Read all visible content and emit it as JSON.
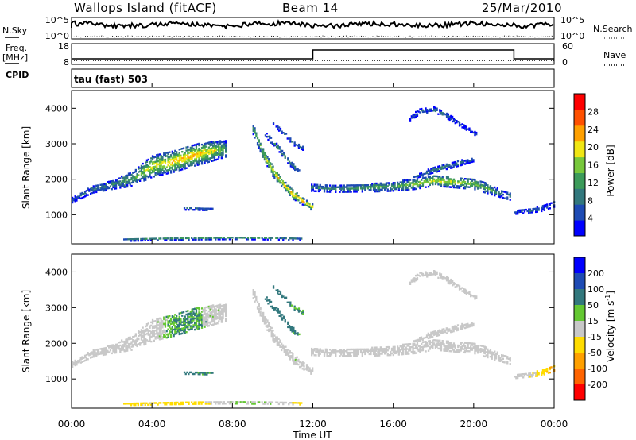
{
  "header": {
    "station": "Wallops Island (fitACF)",
    "beam": "Beam 14",
    "date": "25/Mar/2010"
  },
  "strips": {
    "nsky_label": "N.Sky",
    "nsky_ticks": [
      "10^5",
      "10^0"
    ],
    "nsearch_label": "N.Search",
    "nsearch_ticks": [
      "10^5",
      "10^0"
    ],
    "freq_label_1": "Freq.",
    "freq_label_2": "[MHz]",
    "freq_ticks": [
      "18",
      "8"
    ],
    "nave_label": "Nave",
    "nave_ticks": [
      "60",
      "0"
    ],
    "cpid_label": "CPID",
    "cpid_value": "tau (fast) 503"
  },
  "colors": {
    "power_scale": [
      "#0000ff",
      "#1e4bb4",
      "#32787d",
      "#3c9b5a",
      "#78c83c",
      "#f0e614",
      "#ffa000",
      "#ff5000",
      "#ff0000"
    ],
    "velocity_scale": [
      "#0000ff",
      "#1e4bb4",
      "#32787d",
      "#64c832",
      "#c8c8c8",
      "#ffdc00",
      "#ffa000",
      "#ff6400",
      "#ff0000"
    ],
    "ground_scatter": "#c8c8c8"
  },
  "chart_data": [
    {
      "type": "heatmap",
      "panel": "power",
      "ylabel": "Slant Range [km]",
      "xlabel": "Time UT",
      "x_ticks": [
        "00:00",
        "04:00",
        "08:00",
        "12:00",
        "16:00",
        "20:00",
        "00:00"
      ],
      "xlim_hours": [
        0,
        24
      ],
      "y_ticks": [
        1000,
        2000,
        3000,
        4000
      ],
      "ylim": [
        180,
        4500
      ],
      "colorbar": {
        "label": "Power [dB]",
        "ticks": [
          4,
          8,
          12,
          16,
          20,
          24,
          28
        ],
        "range": [
          0,
          32
        ]
      },
      "regions": [
        {
          "name": "early-band",
          "t": [
            0.0,
            1.0,
            2.0,
            3.0,
            4.0,
            5.0,
            6.0,
            7.0,
            7.7
          ],
          "r": [
            1400,
            1700,
            1830,
            2000,
            2350,
            2480,
            2650,
            2780,
            2850
          ],
          "w": [
            150,
            200,
            250,
            400,
            600,
            600,
            600,
            550,
            450
          ],
          "p": [
            6,
            10,
            12,
            15,
            22,
            24,
            25,
            22,
            14
          ]
        },
        {
          "name": "evening-steep-arc",
          "t": [
            9.0,
            9.5,
            10.0,
            10.5,
            11.0,
            11.5,
            11.95
          ],
          "r": [
            3400,
            2700,
            2200,
            1850,
            1550,
            1350,
            1200
          ],
          "w": [
            300,
            300,
            300,
            250,
            250,
            200,
            200
          ],
          "p": [
            14,
            20,
            22,
            24,
            26,
            26,
            22
          ]
        },
        {
          "name": "evening-upper-arc-1",
          "t": [
            9.6,
            10.2,
            10.8,
            11.3
          ],
          "r": [
            3250,
            2900,
            2450,
            2200
          ],
          "w": [
            150,
            150,
            150,
            130
          ],
          "p": [
            8,
            14,
            12,
            10
          ]
        },
        {
          "name": "evening-upper-arc-2",
          "t": [
            10.0,
            10.6,
            11.0,
            11.5
          ],
          "r": [
            3550,
            3250,
            3000,
            2850
          ],
          "w": [
            120,
            120,
            120,
            100
          ],
          "p": [
            6,
            8,
            10,
            8
          ]
        },
        {
          "name": "night-band",
          "t": [
            11.9,
            13.0,
            14.0,
            15.0,
            16.0,
            17.0,
            18.0,
            19.0,
            20.0,
            21.0,
            21.9
          ],
          "r": [
            1750,
            1720,
            1730,
            1760,
            1780,
            1850,
            1950,
            1900,
            1850,
            1650,
            1480
          ],
          "w": [
            200,
            200,
            200,
            250,
            250,
            300,
            300,
            300,
            300,
            250,
            200
          ],
          "p": [
            10,
            12,
            14,
            16,
            14,
            20,
            22,
            20,
            18,
            14,
            10
          ]
        },
        {
          "name": "far-range-arc",
          "t": [
            16.8,
            17.3,
            18.0,
            18.7,
            19.4,
            20.1
          ],
          "r": [
            3700,
            3900,
            3950,
            3750,
            3500,
            3250
          ],
          "w": [
            120,
            150,
            150,
            150,
            120,
            100
          ],
          "p": [
            6,
            8,
            10,
            8,
            6,
            5
          ]
        },
        {
          "name": "mid-range-arc",
          "t": [
            17.0,
            18.0,
            19.0,
            20.0
          ],
          "r": [
            2050,
            2250,
            2400,
            2550
          ],
          "w": [
            100,
            150,
            150,
            120
          ],
          "p": [
            8,
            12,
            10,
            8
          ]
        },
        {
          "name": "dawn-band",
          "t": [
            22.0,
            22.7,
            23.3,
            24.0
          ],
          "r": [
            1050,
            1100,
            1150,
            1300
          ],
          "w": [
            100,
            120,
            150,
            180
          ],
          "p": [
            6,
            8,
            8,
            6
          ]
        },
        {
          "name": "blob-1100km",
          "t": [
            5.5,
            6.0,
            6.5,
            7.0
          ],
          "r": [
            1150,
            1150,
            1140,
            1130
          ],
          "w": [
            60,
            60,
            60,
            50
          ],
          "p": [
            14,
            14,
            13,
            12
          ]
        },
        {
          "name": "near-range",
          "t": [
            2.5,
            4.0,
            6.0,
            8.0,
            10.0,
            11.5
          ],
          "r": [
            280,
            300,
            320,
            330,
            320,
            300
          ],
          "w": [
            80,
            80,
            80,
            80,
            80,
            80
          ],
          "p": [
            8,
            12,
            14,
            14,
            12,
            10
          ]
        }
      ]
    },
    {
      "type": "heatmap",
      "panel": "velocity",
      "ylabel": "Slant Range [km]",
      "xlabel": "Time UT",
      "x_ticks": [
        "00:00",
        "04:00",
        "08:00",
        "12:00",
        "16:00",
        "20:00",
        "00:00"
      ],
      "y_ticks": [
        1000,
        2000,
        3000,
        4000
      ],
      "ylim": [
        180,
        4500
      ],
      "colorbar": {
        "label": "Velocity [m s",
        "label_exponent": "-1",
        "label_end": "]",
        "ticks": [
          "200",
          "100",
          "50",
          "15",
          "-15",
          "-50",
          "-100",
          "-200"
        ]
      },
      "regions": [
        {
          "name": "early-band",
          "t": [
            0.0,
            1.0,
            2.0,
            3.0,
            4.0,
            5.0,
            6.0,
            7.0,
            7.7
          ],
          "r": [
            1400,
            1700,
            1830,
            2000,
            2350,
            2480,
            2650,
            2780,
            2850
          ],
          "w": [
            150,
            200,
            250,
            400,
            600,
            600,
            600,
            550,
            450
          ],
          "v": [
            0,
            0,
            0,
            0,
            5,
            30,
            35,
            20,
            10
          ],
          "gs": [
            1,
            1,
            1,
            1,
            1,
            0,
            0,
            1,
            1
          ]
        },
        {
          "name": "evening-steep-arc",
          "t": [
            9.0,
            9.5,
            10.0,
            10.5,
            11.0,
            11.5,
            11.95
          ],
          "r": [
            3400,
            2700,
            2200,
            1850,
            1550,
            1350,
            1200
          ],
          "w": [
            300,
            300,
            300,
            250,
            250,
            200,
            200
          ],
          "v": [
            0,
            0,
            5,
            10,
            10,
            5,
            0
          ],
          "gs": [
            1,
            1,
            1,
            1,
            1,
            1,
            1
          ]
        },
        {
          "name": "evening-upper-arc-1",
          "t": [
            9.6,
            10.2,
            10.8,
            11.3
          ],
          "r": [
            3250,
            2900,
            2450,
            2200
          ],
          "w": [
            150,
            150,
            150,
            130
          ],
          "v": [
            40,
            45,
            40,
            35
          ],
          "gs": [
            0,
            0,
            0,
            0
          ]
        },
        {
          "name": "evening-upper-arc-2",
          "t": [
            10.0,
            10.6,
            11.0,
            11.5
          ],
          "r": [
            3550,
            3250,
            3000,
            2850
          ],
          "w": [
            120,
            120,
            120,
            100
          ],
          "v": [
            40,
            40,
            35,
            30
          ],
          "gs": [
            0,
            0,
            0,
            0
          ]
        },
        {
          "name": "night-band",
          "t": [
            11.9,
            13.0,
            14.0,
            15.0,
            16.0,
            17.0,
            18.0,
            19.0,
            20.0,
            21.0,
            21.9
          ],
          "r": [
            1750,
            1720,
            1730,
            1760,
            1780,
            1850,
            1950,
            1900,
            1850,
            1650,
            1480
          ],
          "w": [
            200,
            200,
            200,
            250,
            250,
            300,
            300,
            300,
            300,
            250,
            200
          ],
          "v": [
            0,
            0,
            0,
            0,
            0,
            0,
            0,
            0,
            0,
            0,
            0
          ],
          "gs": [
            1,
            1,
            1,
            1,
            1,
            1,
            1,
            1,
            1,
            1,
            1
          ]
        },
        {
          "name": "far-range-arc",
          "t": [
            16.8,
            17.3,
            18.0,
            18.7,
            19.4,
            20.1
          ],
          "r": [
            3700,
            3900,
            3950,
            3750,
            3500,
            3250
          ],
          "w": [
            120,
            150,
            150,
            150,
            120,
            100
          ],
          "v": [
            0,
            0,
            0,
            0,
            0,
            0
          ],
          "gs": [
            1,
            1,
            1,
            1,
            1,
            1
          ]
        },
        {
          "name": "mid-range-arc",
          "t": [
            17.0,
            18.0,
            19.0,
            20.0
          ],
          "r": [
            2050,
            2250,
            2400,
            2550
          ],
          "w": [
            100,
            150,
            150,
            120
          ],
          "v": [
            0,
            0,
            0,
            0
          ],
          "gs": [
            1,
            1,
            1,
            1
          ]
        },
        {
          "name": "dawn-band",
          "t": [
            22.0,
            22.7,
            23.3,
            24.0
          ],
          "r": [
            1050,
            1100,
            1150,
            1300
          ],
          "w": [
            100,
            120,
            150,
            180
          ],
          "v": [
            0,
            -10,
            -30,
            -60
          ],
          "gs": [
            1,
            1,
            0,
            0
          ]
        },
        {
          "name": "blob-1100km",
          "t": [
            5.5,
            6.0,
            6.5,
            7.0
          ],
          "r": [
            1150,
            1150,
            1140,
            1130
          ],
          "w": [
            60,
            60,
            60,
            50
          ],
          "v": [
            40,
            40,
            35,
            35
          ],
          "gs": [
            0,
            0,
            0,
            0
          ]
        },
        {
          "name": "near-range",
          "t": [
            2.5,
            4.0,
            6.0,
            8.0,
            10.0,
            11.5
          ],
          "r": [
            280,
            300,
            320,
            330,
            320,
            300
          ],
          "w": [
            80,
            80,
            80,
            80,
            80,
            80
          ],
          "v": [
            -30,
            -20,
            -40,
            20,
            10,
            -30
          ],
          "gs": [
            0,
            0,
            0,
            0,
            0,
            0
          ]
        }
      ]
    }
  ]
}
